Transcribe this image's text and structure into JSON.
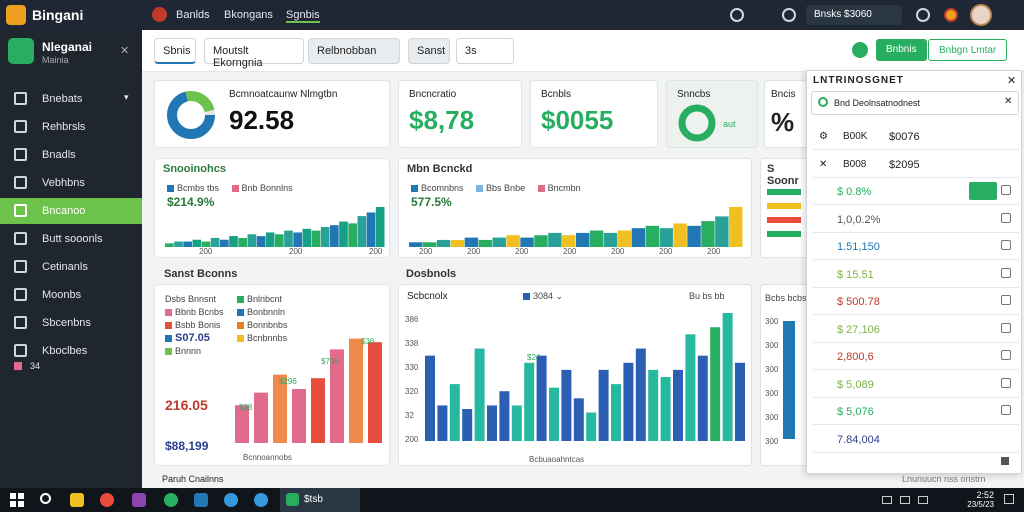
{
  "topbar": {
    "brand": "Bingani",
    "nav": [
      "Banlds",
      "Bkongans",
      "Sgnbis"
    ],
    "balance": "Bnsks $3060"
  },
  "sidebar": {
    "title": "Nleganai",
    "subtitle": "Mainia",
    "items": [
      {
        "label": "Bnebats",
        "icon": "dashboard-icon"
      },
      {
        "label": "Rehbrsls",
        "icon": "reports-icon"
      },
      {
        "label": "Bnadls",
        "icon": "grid-icon"
      },
      {
        "label": "Vebhbns",
        "icon": "folder-icon"
      },
      {
        "label": "Bncanoo",
        "icon": "wallet-icon",
        "active": true
      },
      {
        "label": "Butt sooonls",
        "icon": "calendar-icon"
      },
      {
        "label": "Cetinanls",
        "icon": "users-icon"
      },
      {
        "label": "Moonbs",
        "icon": "mail-icon"
      },
      {
        "label": "Sbcenbns",
        "icon": "chart-icon"
      },
      {
        "label": "Kboclbes",
        "icon": "settings-icon"
      }
    ],
    "footer_badge": "34"
  },
  "toolbar": {
    "tab": "Sbnis",
    "select1": "Moutslt Ekorngnia",
    "select2": "Relbnobban",
    "btn": "Sanst",
    "filter": "3s",
    "green1": "Bnbnis",
    "green2": "Bnbgn Lmtar"
  },
  "kpis": {
    "k1_label": "Bcmnoatcaunw Nlmgtbn",
    "k1_value": "92.58",
    "k2_label": "Bncncratio",
    "k2_value": "$8,78",
    "k3_label": "Bcnbls",
    "k3_value": "$0055",
    "k4_label": "Snncbs",
    "k4_extra": "aut",
    "k5_label": "Bncis",
    "k5_value": "%"
  },
  "area_charts": {
    "c1_title": "Snooinohcs",
    "c1_legend": [
      "Bcmbs tbs",
      "Bnb Bonnlns"
    ],
    "c1_value": "$214.9%",
    "c1_axis": [
      "200",
      "200",
      "200"
    ],
    "c2_title": "Mbn Bcnckd",
    "c2_legend": [
      "Bcomnbns",
      "Bbs Bnbe",
      "Bncmbn"
    ],
    "c2_value": "577.5%",
    "c2_axis": [
      "200",
      "200",
      "200",
      "200",
      "200",
      "200",
      "200"
    ],
    "c3_title": "S Soonr"
  },
  "bar_left": {
    "title": "Sanst Bconns",
    "legend_a": [
      "Dsbs Bnnsnt",
      "Bbnb Bcnbs",
      "Bsbb Bonis",
      "S07.05",
      "Bnnnn"
    ],
    "legend_b": [
      "Bnlnbcnt",
      "Bonbnnln",
      "Bonnbnbs",
      "Bcnbnnbs"
    ],
    "v1": "216.05",
    "v2": "$88,199",
    "axis": "Bcnnoannobs",
    "labels": [
      "$38",
      "$296",
      "$795",
      "$36"
    ]
  },
  "bar_mid": {
    "title": "Dosbnols",
    "sub": "Scbcnolx",
    "legend": "3084",
    "right": "Bu bs bb",
    "tag": "$24",
    "axis_title": "Bcbuaoahntcas",
    "y": [
      "386",
      "338",
      "330",
      "320",
      "32",
      "200"
    ]
  },
  "bar_right": {
    "label": "Bcbs bcbs",
    "y": [
      "300",
      "300",
      "300",
      "300",
      "300",
      "300"
    ]
  },
  "panel": {
    "title": "LNTRINOSGNET",
    "search": "Bnd Deolnsatnodnest",
    "rows": [
      {
        "value": "$0076",
        "label": "B00K",
        "color": "#222"
      },
      {
        "value": "$2095",
        "label": "B008",
        "color": "#222"
      },
      {
        "value": "$ 0.8%",
        "label": "",
        "color": "#27ae60"
      },
      {
        "value": "1,0,0.2%",
        "label": "",
        "color": "#555"
      },
      {
        "value": "1.51,150",
        "label": "",
        "color": "#2077b4"
      },
      {
        "value": "$ 15.51",
        "label": "",
        "color": "#7cb342"
      },
      {
        "value": "$ 500.78",
        "label": "",
        "color": "#c0392b"
      },
      {
        "value": "$ 27,106",
        "label": "",
        "color": "#7cb342"
      },
      {
        "value": "2,800,6",
        "label": "",
        "color": "#c0392b"
      },
      {
        "value": "$ 5,089",
        "label": "",
        "color": "#7cb342"
      },
      {
        "value": "$ 5,076",
        "label": "",
        "color": "#27ae60"
      },
      {
        "value": "7.84,004",
        "label": "",
        "color": "#2c3e8f"
      }
    ]
  },
  "footer": {
    "left": "Paruh Cnailnns",
    "right": "Lnunuucn nss onstrn"
  },
  "taskbar": {
    "app": "$tsb",
    "time": "2:52",
    "date": "23/5/23"
  },
  "chart_data": [
    {
      "type": "area",
      "title": "Snooinohcs",
      "series": [
        {
          "name": "Bcmbs tbs",
          "values": [
            2,
            3,
            3,
            4,
            3,
            5,
            4,
            6,
            5,
            7,
            6,
            8,
            7,
            9,
            8,
            10,
            9,
            11,
            12,
            14,
            13,
            17,
            19,
            22
          ]
        }
      ]
    },
    {
      "type": "area",
      "title": "Mbn Bcnckd",
      "series": [
        {
          "name": "Bcomnbns",
          "values": [
            2,
            2,
            3,
            3,
            4,
            3,
            4,
            5,
            4,
            5,
            6,
            5,
            6,
            7,
            6,
            7,
            8,
            9,
            8,
            10,
            9,
            11,
            13,
            17
          ]
        }
      ]
    },
    {
      "type": "bar",
      "title": "Sanst Bconns",
      "values": [
        21,
        28,
        38,
        30,
        36,
        52,
        58,
        56
      ]
    },
    {
      "type": "bar",
      "title": "Dosbnols",
      "values": [
        48,
        20,
        32,
        18,
        52,
        20,
        28,
        20,
        44,
        48,
        30,
        40,
        24,
        16,
        40,
        32,
        44,
        52,
        40,
        36,
        40,
        60,
        48,
        64,
        72,
        44
      ]
    }
  ]
}
